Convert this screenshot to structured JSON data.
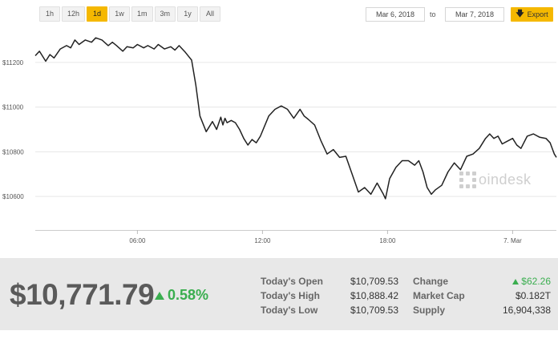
{
  "range_buttons": [
    "1h",
    "12h",
    "1d",
    "1w",
    "1m",
    "3m",
    "1y",
    "All"
  ],
  "active_range": "1d",
  "date_from": "Mar 6, 2018",
  "date_to_label": "to",
  "date_to": "Mar 7, 2018",
  "export_label": "Export",
  "watermark": {
    "text": "oindesk"
  },
  "stats": {
    "price": "$10,771.79",
    "change_pct": "0.58%",
    "todays_open_label": "Today's Open",
    "todays_open": "$10,709.53",
    "todays_high_label": "Today's High",
    "todays_high": "$10,888.42",
    "todays_low_label": "Today's Low",
    "todays_low": "$10,709.53",
    "change_label": "Change",
    "change": "$62.26",
    "market_cap_label": "Market Cap",
    "market_cap": "$0.182T",
    "supply_label": "Supply",
    "supply": "16,904,338"
  },
  "colors": {
    "accent": "#f5b800",
    "positive": "#3aae4f",
    "line": "#222222",
    "panel": "#e8e8e8"
  },
  "chart_data": {
    "type": "line",
    "ylim": [
      10450,
      11350
    ],
    "y_ticks": [
      10600,
      10800,
      11000,
      11200
    ],
    "y_tick_labels": [
      "$10600",
      "$10800",
      "$11000",
      "$11200"
    ],
    "x_tick_labels": [
      "06:00",
      "12:00",
      "18:00",
      "7. Mar"
    ],
    "x_tick_hours": [
      6,
      12,
      18,
      24
    ],
    "x_range_hours": [
      1.1,
      26.1
    ],
    "series": [
      {
        "x": [
          1.1,
          1.3,
          1.6,
          1.8,
          2.0,
          2.3,
          2.6,
          2.8,
          3.0,
          3.2,
          3.5,
          3.8,
          4.0,
          4.3,
          4.6,
          4.8,
          5.0,
          5.3,
          5.5,
          5.8,
          6.0,
          6.3,
          6.5,
          6.8,
          7.0,
          7.3,
          7.6,
          7.8,
          8.0,
          8.3,
          8.6,
          8.8,
          9.0,
          9.3,
          9.6,
          9.8,
          10.0,
          10.1,
          10.2,
          10.3,
          10.5,
          10.7,
          10.9,
          11.1,
          11.3,
          11.5,
          11.7,
          11.9,
          12.1,
          12.3,
          12.6,
          12.9,
          13.2,
          13.5,
          13.8,
          14.0,
          14.2,
          14.5,
          14.8,
          15.1,
          15.4,
          15.7,
          16.0,
          16.3,
          16.6,
          16.9,
          17.2,
          17.5,
          17.8,
          17.9,
          18.1,
          18.4,
          18.7,
          19.0,
          19.3,
          19.5,
          19.7,
          19.9,
          20.1,
          20.3,
          20.6,
          20.9,
          21.2,
          21.5,
          21.8,
          22.1,
          22.4,
          22.7,
          22.9,
          23.1,
          23.3,
          23.5,
          23.7,
          24.0,
          24.2,
          24.4,
          24.7,
          25.0,
          25.3,
          25.6,
          25.8,
          26.0,
          26.1
        ],
        "y": [
          11230,
          11250,
          11205,
          11235,
          11220,
          11260,
          11275,
          11265,
          11300,
          11280,
          11300,
          11290,
          11310,
          11300,
          11275,
          11290,
          11275,
          11250,
          11270,
          11265,
          11280,
          11265,
          11275,
          11260,
          11280,
          11260,
          11270,
          11255,
          11275,
          11245,
          11210,
          11100,
          10960,
          10890,
          10935,
          10900,
          10955,
          10920,
          10950,
          10930,
          10940,
          10930,
          10900,
          10860,
          10830,
          10855,
          10840,
          10870,
          10915,
          10960,
          10990,
          11005,
          10990,
          10950,
          10990,
          10960,
          10945,
          10920,
          10850,
          10790,
          10810,
          10775,
          10780,
          10700,
          10620,
          10640,
          10610,
          10660,
          10610,
          10590,
          10680,
          10730,
          10760,
          10760,
          10740,
          10760,
          10710,
          10640,
          10610,
          10630,
          10650,
          10710,
          10750,
          10720,
          10780,
          10790,
          10815,
          10860,
          10880,
          10860,
          10870,
          10835,
          10845,
          10860,
          10830,
          10815,
          10870,
          10880,
          10865,
          10860,
          10840,
          10790,
          10775
        ]
      }
    ]
  }
}
